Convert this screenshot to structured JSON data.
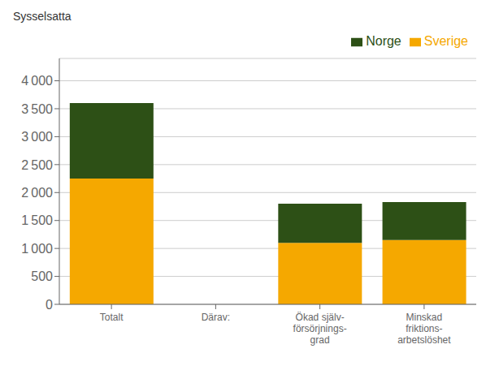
{
  "chart_data": {
    "type": "bar",
    "stacked": true,
    "ylabel": "Sysselsatta",
    "categories": [
      "Totalt",
      "Därav:",
      "Ökad själv-\nförsörjnings-\ngrad",
      "Minskad\nfriktions-\narbetslöshet"
    ],
    "series": [
      {
        "name": "Sverige",
        "color": "#F5A800",
        "values": [
          2250,
          0,
          1100,
          1150
        ]
      },
      {
        "name": "Norge",
        "color": "#2D5016",
        "values": [
          1350,
          0,
          700,
          680
        ]
      }
    ],
    "ylim": [
      0,
      4400
    ],
    "yticks": [
      0,
      500,
      {
        "value": 1000,
        "label": "1 000"
      },
      {
        "value": 1500,
        "label": "1 500"
      },
      {
        "value": 2000,
        "label": "2 000"
      },
      {
        "value": 2500,
        "label": "2 500"
      },
      {
        "value": 3000,
        "label": "3 000"
      },
      {
        "value": 3500,
        "label": "3 500"
      },
      {
        "value": 4000,
        "label": "4 000"
      }
    ],
    "grid": true,
    "legend": "top"
  }
}
